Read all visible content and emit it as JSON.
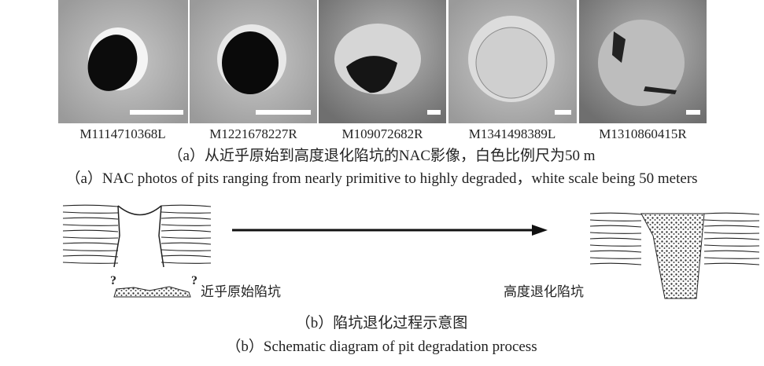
{
  "figure": {
    "images": [
      {
        "label": "M1114710368L"
      },
      {
        "label": "M1221678227R"
      },
      {
        "label": "M109072682R"
      },
      {
        "label": "M1341498389L"
      },
      {
        "label": "M1310860415R"
      }
    ],
    "caption_a_zh": "（a）从近乎原始到高度退化陷坑的NAC影像，白色比例尺为50 m",
    "caption_a_en": "（a）NAC photos of pits ranging from nearly primitive to highly degraded，white scale being 50 meters",
    "diagram": {
      "left_label": "近乎原始陷坑",
      "right_label": "高度退化陷坑",
      "question_marks": [
        "?",
        "?"
      ]
    },
    "caption_b_zh": "（b）陷坑退化过程示意图",
    "caption_b_en": "（b）Schematic diagram of pit degradation process"
  }
}
